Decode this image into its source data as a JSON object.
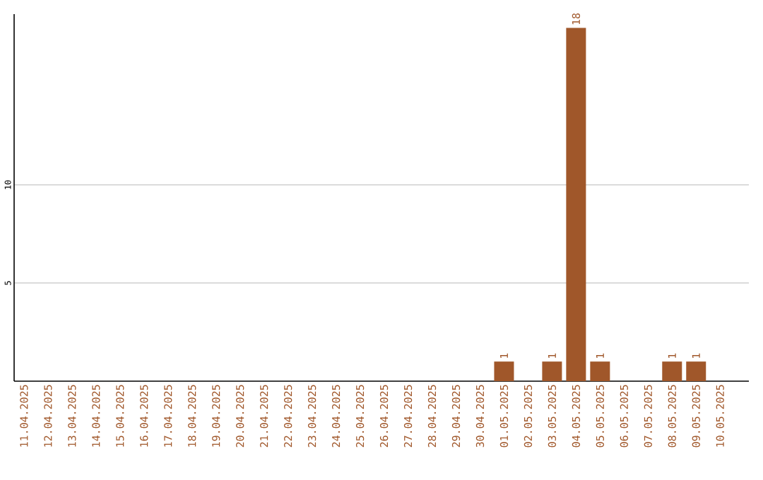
{
  "chart_data": {
    "type": "bar",
    "categories": [
      "11.04.2025",
      "12.04.2025",
      "13.04.2025",
      "14.04.2025",
      "15.04.2025",
      "16.04.2025",
      "17.04.2025",
      "18.04.2025",
      "19.04.2025",
      "20.04.2025",
      "21.04.2025",
      "22.04.2025",
      "23.04.2025",
      "24.04.2025",
      "25.04.2025",
      "26.04.2025",
      "27.04.2025",
      "28.04.2025",
      "29.04.2025",
      "30.04.2025",
      "01.05.2025",
      "02.05.2025",
      "03.05.2025",
      "04.05.2025",
      "05.05.2025",
      "06.05.2025",
      "07.05.2025",
      "08.05.2025",
      "09.05.2025",
      "10.05.2025"
    ],
    "values": [
      0,
      0,
      0,
      0,
      0,
      0,
      0,
      0,
      0,
      0,
      0,
      0,
      0,
      0,
      0,
      0,
      0,
      0,
      0,
      0,
      1,
      0,
      1,
      18,
      1,
      0,
      0,
      1,
      1,
      0
    ],
    "value_labels": [
      null,
      null,
      null,
      null,
      null,
      null,
      null,
      null,
      null,
      null,
      null,
      null,
      null,
      null,
      null,
      null,
      null,
      null,
      null,
      null,
      "1",
      null,
      "1",
      "18",
      "1",
      null,
      null,
      "1",
      "1",
      null
    ],
    "color": "#a0572a",
    "ylim": [
      0,
      18.7
    ],
    "yticks": [
      5,
      10
    ],
    "grid": "y"
  }
}
